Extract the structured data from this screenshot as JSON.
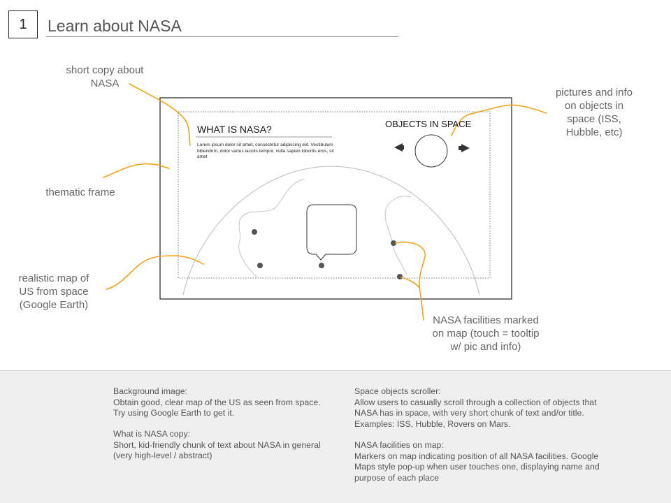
{
  "slide": {
    "number": "1",
    "title": "Learn about NASA"
  },
  "annotations": {
    "short_copy": "short copy about\nNASA",
    "pictures_info": "pictures and info\non objects in\nspace (ISS,\nHubble, etc)",
    "thematic_frame": "thematic frame",
    "realistic_map": "realistic map of\nUS from space\n(Google Earth)",
    "facilities": "NASA facilities marked\non map (touch = tooltip\nw/ pic and info)"
  },
  "wireframe": {
    "heading": "WHAT IS NASA?",
    "body": "Lorem ipsum dolor sit amet, consectetur adipiscing elit. Vestibulum bibendum, dolor varius iaculis tempor, nulla sapien lobortis eros, sit amet",
    "objects_title": "OBJECTS IN SPACE"
  },
  "notes": {
    "background_image": "Background image:\nObtain good, clear map of the US as seen from space. Try using Google Earth to get it.",
    "what_is_nasa": "What is NASA copy:\nShort, kid-friendly chunk of text about NASA in general (very high-level / abstract)",
    "space_objects": "Space objects scroller:\nAllow users to casually scroll through a collection of objects that NASA has in space, with very short chunk of text and/or title. Examples: ISS, Hubble, Rovers on Mars.",
    "facilities_map": "NASA facilities on map:\nMarkers on map indicating position of all NASA facilities. Google Maps style pop-up when user touches one, displaying name and purpose of each place"
  },
  "colors": {
    "annotation_line": "#f5a21b",
    "wireframe_stroke": "#333333",
    "marker": "#555555",
    "notes_background": "#efefef"
  }
}
